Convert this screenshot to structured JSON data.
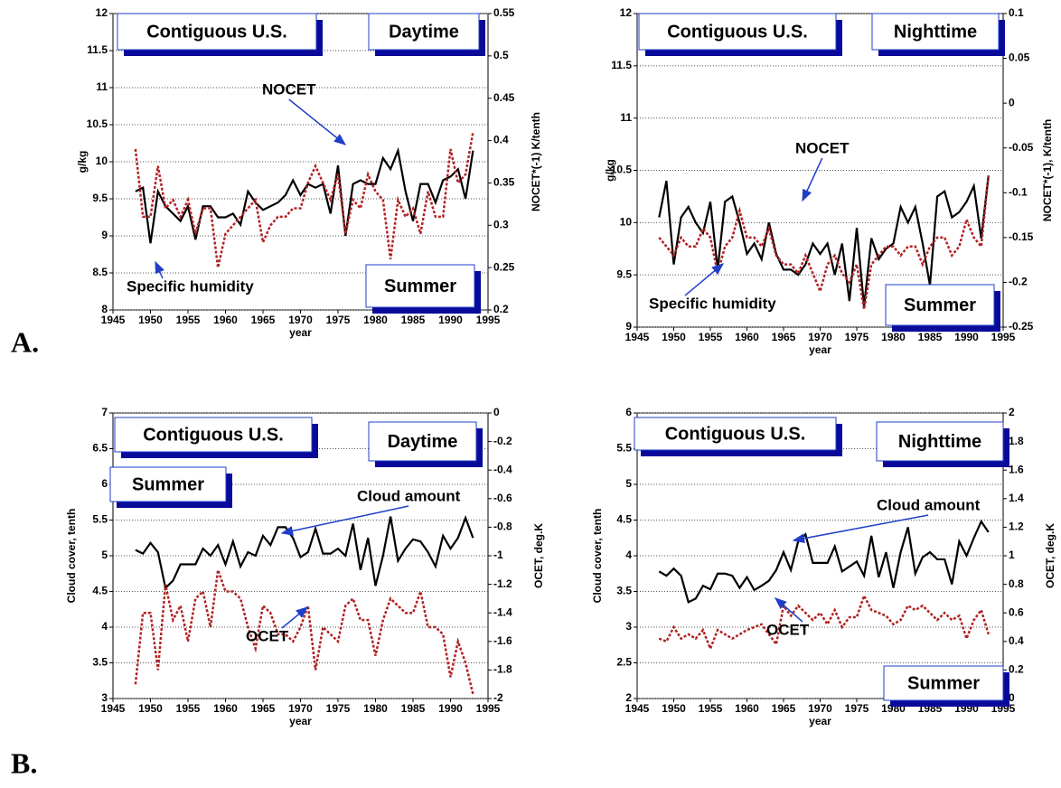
{
  "panel_labels": [
    "A.",
    "B."
  ],
  "chart_data": [
    {
      "type": "line",
      "xlabel": "year",
      "ylabel": "g/kg",
      "y2label": "NOCET*(-1) K/tenth",
      "annotations": [
        "Contiguous U.S.",
        "Daytime",
        "Summer"
      ],
      "xlim": [
        1945,
        1995
      ],
      "xticks": [
        1945,
        1950,
        1955,
        1960,
        1965,
        1970,
        1975,
        1980,
        1985,
        1990,
        1995
      ],
      "ylim": [
        8,
        12
      ],
      "yticks": [
        8,
        8.5,
        9,
        9.5,
        10,
        10.5,
        11,
        11.5,
        12
      ],
      "y2lim": [
        0.2,
        0.55
      ],
      "y2ticks": [
        0.2,
        0.25,
        0.3,
        0.35,
        0.4,
        0.45,
        0.5,
        0.55
      ],
      "grid": true,
      "x": [
        1948,
        1949,
        1950,
        1951,
        1952,
        1953,
        1954,
        1955,
        1956,
        1957,
        1958,
        1959,
        1960,
        1961,
        1962,
        1963,
        1964,
        1965,
        1966,
        1967,
        1968,
        1969,
        1970,
        1971,
        1972,
        1973,
        1974,
        1975,
        1976,
        1977,
        1978,
        1979,
        1980,
        1981,
        1982,
        1983,
        1984,
        1985,
        1986,
        1987,
        1988,
        1989,
        1990,
        1991,
        1992,
        1993
      ],
      "series": [
        {
          "name": "Specific humidity",
          "color": "#000000",
          "line_style": "solid",
          "axis": "y",
          "values": [
            9.6,
            9.65,
            8.9,
            9.6,
            9.4,
            9.3,
            9.2,
            9.4,
            8.95,
            9.4,
            9.4,
            9.25,
            9.25,
            9.3,
            9.15,
            9.6,
            9.45,
            9.35,
            9.4,
            9.45,
            9.55,
            9.75,
            9.55,
            9.7,
            9.65,
            9.7,
            9.3,
            9.95,
            9.0,
            9.7,
            9.75,
            9.7,
            9.7,
            10.05,
            9.9,
            10.15,
            9.6,
            9.2,
            9.7,
            9.7,
            9.45,
            9.75,
            9.8,
            9.9,
            9.5,
            10.15
          ]
        },
        {
          "name": "NOCET",
          "color": "#b22222",
          "line_style": "dotted",
          "axis": "y2",
          "values": [
            0.39,
            0.31,
            0.31,
            0.37,
            0.32,
            0.33,
            0.31,
            0.33,
            0.29,
            0.32,
            0.32,
            0.25,
            0.29,
            0.3,
            0.31,
            0.32,
            0.33,
            0.28,
            0.3,
            0.31,
            0.31,
            0.32,
            0.32,
            0.35,
            0.37,
            0.35,
            0.33,
            0.36,
            0.29,
            0.33,
            0.32,
            0.36,
            0.34,
            0.33,
            0.26,
            0.33,
            0.31,
            0.32,
            0.29,
            0.34,
            0.31,
            0.31,
            0.39,
            0.35,
            0.36,
            0.41
          ]
        }
      ]
    },
    {
      "type": "line",
      "xlabel": "year",
      "ylabel": "g/kg",
      "y2label": "NOCET*(-1), K/tenth",
      "annotations": [
        "Contiguous U.S.",
        "Nighttime",
        "Summer"
      ],
      "xlim": [
        1945,
        1995
      ],
      "xticks": [
        1945,
        1950,
        1955,
        1960,
        1965,
        1970,
        1975,
        1980,
        1985,
        1990,
        1995
      ],
      "ylim": [
        9,
        12
      ],
      "yticks": [
        9,
        9.5,
        10,
        10.5,
        11,
        11.5,
        12
      ],
      "y2lim": [
        -0.25,
        0.1
      ],
      "y2ticks": [
        -0.25,
        -0.2,
        -0.15,
        -0.1,
        -0.05,
        0,
        0.05,
        0.1
      ],
      "grid": true,
      "x": [
        1948,
        1949,
        1950,
        1951,
        1952,
        1953,
        1954,
        1955,
        1956,
        1957,
        1958,
        1959,
        1960,
        1961,
        1962,
        1963,
        1964,
        1965,
        1966,
        1967,
        1968,
        1969,
        1970,
        1971,
        1972,
        1973,
        1974,
        1975,
        1976,
        1977,
        1978,
        1979,
        1980,
        1981,
        1982,
        1983,
        1984,
        1985,
        1986,
        1987,
        1988,
        1989,
        1990,
        1991,
        1992,
        1993
      ],
      "series": [
        {
          "name": "Specific humidity",
          "color": "#000000",
          "line_style": "solid",
          "axis": "y",
          "values": [
            10.05,
            10.4,
            9.6,
            10.05,
            10.15,
            10.0,
            9.9,
            10.2,
            9.55,
            10.2,
            10.25,
            10.0,
            9.7,
            9.8,
            9.65,
            10.0,
            9.7,
            9.55,
            9.55,
            9.5,
            9.6,
            9.8,
            9.7,
            9.8,
            9.5,
            9.8,
            9.25,
            9.95,
            9.2,
            9.85,
            9.65,
            9.75,
            9.8,
            10.15,
            10.0,
            10.15,
            9.8,
            9.4,
            10.25,
            10.3,
            10.05,
            10.1,
            10.2,
            10.35,
            9.85,
            10.45
          ]
        },
        {
          "name": "NOCET",
          "color": "#b22222",
          "line_style": "dotted",
          "axis": "y2",
          "values": [
            -0.15,
            -0.16,
            -0.17,
            -0.15,
            -0.16,
            -0.16,
            -0.14,
            -0.15,
            -0.19,
            -0.16,
            -0.15,
            -0.12,
            -0.15,
            -0.15,
            -0.16,
            -0.14,
            -0.17,
            -0.18,
            -0.18,
            -0.19,
            -0.17,
            -0.19,
            -0.21,
            -0.18,
            -0.17,
            -0.19,
            -0.2,
            -0.18,
            -0.23,
            -0.18,
            -0.17,
            -0.16,
            -0.16,
            -0.17,
            -0.16,
            -0.16,
            -0.18,
            -0.16,
            -0.15,
            -0.15,
            -0.17,
            -0.16,
            -0.13,
            -0.15,
            -0.16,
            -0.08
          ]
        }
      ]
    },
    {
      "type": "line",
      "xlabel": "year",
      "ylabel": "Cloud cover, tenth",
      "y2label": "OCET, deg.K",
      "annotations": [
        "Contiguous U.S.",
        "Daytime",
        "Summer"
      ],
      "xlim": [
        1945,
        1995
      ],
      "xticks": [
        1945,
        1950,
        1955,
        1960,
        1965,
        1970,
        1975,
        1980,
        1985,
        1990,
        1995
      ],
      "ylim": [
        3,
        7
      ],
      "yticks": [
        3,
        3.5,
        4,
        4.5,
        5,
        5.5,
        6,
        6.5,
        7
      ],
      "y2lim": [
        -2,
        0
      ],
      "y2ticks": [
        -2,
        -1.8,
        -1.6,
        -1.4,
        -1.2,
        -1,
        -0.8,
        -0.6,
        -0.4,
        -0.2,
        0
      ],
      "grid": true,
      "x": [
        1948,
        1949,
        1950,
        1951,
        1952,
        1953,
        1954,
        1955,
        1956,
        1957,
        1958,
        1959,
        1960,
        1961,
        1962,
        1963,
        1964,
        1965,
        1966,
        1967,
        1968,
        1969,
        1970,
        1971,
        1972,
        1973,
        1974,
        1975,
        1976,
        1977,
        1978,
        1979,
        1980,
        1981,
        1982,
        1983,
        1984,
        1985,
        1986,
        1987,
        1988,
        1989,
        1990,
        1991,
        1992,
        1993
      ],
      "series": [
        {
          "name": "Cloud amount",
          "color": "#000000",
          "line_style": "solid",
          "axis": "y",
          "values": [
            5.08,
            5.03,
            5.18,
            5.05,
            4.55,
            4.65,
            4.88,
            4.88,
            4.88,
            5.1,
            5.0,
            5.15,
            4.88,
            5.2,
            4.85,
            5.05,
            5.0,
            5.28,
            5.15,
            5.4,
            5.4,
            5.25,
            4.98,
            5.05,
            5.38,
            5.03,
            5.03,
            5.1,
            5.0,
            5.45,
            4.8,
            5.25,
            4.58,
            5.0,
            5.55,
            4.93,
            5.1,
            5.23,
            5.2,
            5.05,
            4.85,
            5.28,
            5.1,
            5.25,
            5.53,
            5.25
          ]
        },
        {
          "name": "OCET",
          "color": "#b22222",
          "line_style": "dotted",
          "axis": "y2",
          "values": [
            -1.9,
            -1.4,
            -1.4,
            -1.8,
            -1.2,
            -1.45,
            -1.35,
            -1.6,
            -1.3,
            -1.25,
            -1.5,
            -1.1,
            -1.25,
            -1.25,
            -1.3,
            -1.5,
            -1.65,
            -1.35,
            -1.4,
            -1.55,
            -1.55,
            -1.6,
            -1.5,
            -1.35,
            -1.8,
            -1.5,
            -1.55,
            -1.6,
            -1.35,
            -1.3,
            -1.45,
            -1.45,
            -1.7,
            -1.45,
            -1.3,
            -1.35,
            -1.4,
            -1.4,
            -1.25,
            -1.5,
            -1.5,
            -1.55,
            -1.85,
            -1.6,
            -1.75,
            -1.97
          ]
        }
      ]
    },
    {
      "type": "line",
      "xlabel": "year",
      "ylabel": "Cloud cover, tenth",
      "y2label": "OCET, deg.K",
      "annotations": [
        "Contiguous U.S.",
        "Nighttime",
        "Summer"
      ],
      "xlim": [
        1945,
        1995
      ],
      "xticks": [
        1945,
        1950,
        1955,
        1960,
        1965,
        1970,
        1975,
        1980,
        1985,
        1990,
        1995
      ],
      "ylim": [
        2,
        6
      ],
      "yticks": [
        2,
        2.5,
        3,
        3.5,
        4,
        4.5,
        5,
        5.5,
        6
      ],
      "y2lim": [
        0,
        2
      ],
      "y2ticks": [
        0,
        0.2,
        0.4,
        0.6,
        0.8,
        1,
        1.2,
        1.4,
        1.6,
        1.8,
        2
      ],
      "grid": true,
      "x": [
        1948,
        1949,
        1950,
        1951,
        1952,
        1953,
        1954,
        1955,
        1956,
        1957,
        1958,
        1959,
        1960,
        1961,
        1962,
        1963,
        1964,
        1965,
        1966,
        1967,
        1968,
        1969,
        1970,
        1971,
        1972,
        1973,
        1974,
        1975,
        1976,
        1977,
        1978,
        1979,
        1980,
        1981,
        1982,
        1983,
        1984,
        1985,
        1986,
        1987,
        1988,
        1989,
        1990,
        1991,
        1992,
        1993
      ],
      "series": [
        {
          "name": "Cloud amount",
          "color": "#000000",
          "line_style": "solid",
          "axis": "y",
          "values": [
            3.78,
            3.72,
            3.82,
            3.72,
            3.35,
            3.4,
            3.58,
            3.53,
            3.75,
            3.75,
            3.72,
            3.55,
            3.7,
            3.52,
            3.58,
            3.65,
            3.8,
            4.05,
            3.8,
            4.2,
            4.3,
            3.9,
            3.9,
            3.9,
            4.13,
            3.78,
            3.85,
            3.92,
            3.72,
            4.28,
            3.7,
            4.05,
            3.55,
            4.05,
            4.4,
            3.75,
            3.98,
            4.05,
            3.95,
            3.95,
            3.6,
            4.2,
            4.0,
            4.25,
            4.48,
            4.33
          ]
        },
        {
          "name": "OCET",
          "color": "#b22222",
          "line_style": "dotted",
          "axis": "y2",
          "values": [
            0.42,
            0.4,
            0.5,
            0.42,
            0.45,
            0.42,
            0.48,
            0.35,
            0.48,
            0.45,
            0.42,
            0.45,
            0.48,
            0.5,
            0.52,
            0.45,
            0.38,
            0.65,
            0.58,
            0.65,
            0.6,
            0.55,
            0.6,
            0.52,
            0.62,
            0.5,
            0.57,
            0.57,
            0.72,
            0.62,
            0.6,
            0.58,
            0.52,
            0.55,
            0.65,
            0.62,
            0.65,
            0.6,
            0.55,
            0.6,
            0.55,
            0.58,
            0.42,
            0.55,
            0.62,
            0.45
          ]
        }
      ]
    }
  ]
}
